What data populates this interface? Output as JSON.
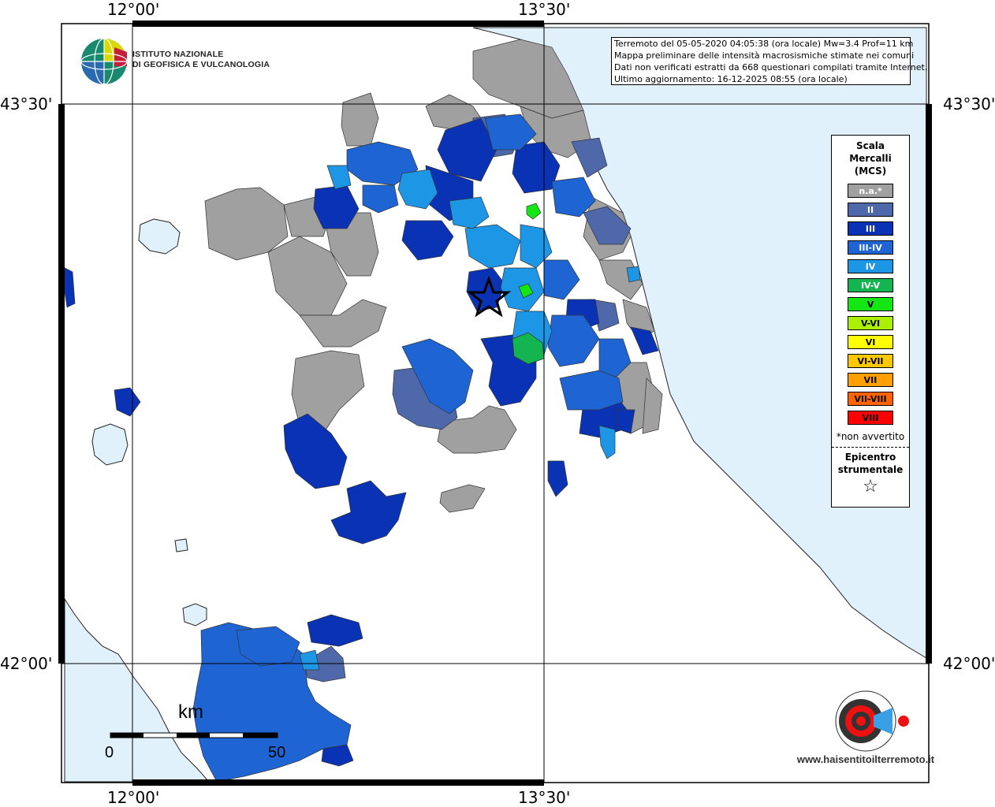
{
  "coords": {
    "lon_left": "12°00'",
    "lon_right": "13°30'",
    "lat_top": "43°30'",
    "lat_bottom": "42°00'"
  },
  "logo": {
    "line1": "ISTITUTO NAZIONALE",
    "line2": "DI GEOFISICA E VULCANOLOGIA"
  },
  "info": {
    "line1": "Terremoto del 05-05-2020 04:05:38 (ora locale) Mw=3.4 Prof=11 km",
    "line2": "Mappa preliminare delle intensità macrosismiche stimate nei comuni",
    "line3": "Dati non verificati estratti da 668 questionari compilati tramite Internet.",
    "line4": "Ultimo aggiornamento: 16-12-2025 08:55 (ora locale)"
  },
  "legend": {
    "title1": "Scala",
    "title2": "Mercalli",
    "title3": "(MCS)",
    "items": [
      {
        "label": "n.a.*",
        "color": "#a0a0a0",
        "text": "#ffffff"
      },
      {
        "label": "II",
        "color": "#4e68aa",
        "text": "#ffffff"
      },
      {
        "label": "III",
        "color": "#0a32b4",
        "text": "#ffffff"
      },
      {
        "label": "III-IV",
        "color": "#1e64d2",
        "text": "#ffffff"
      },
      {
        "label": "IV",
        "color": "#1e96e6",
        "text": "#ffffff"
      },
      {
        "label": "IV-V",
        "color": "#14b450",
        "text": "#ffffff"
      },
      {
        "label": "V",
        "color": "#14e614",
        "text": "#000000"
      },
      {
        "label": "V-VI",
        "color": "#aaf000",
        "text": "#000000"
      },
      {
        "label": "VI",
        "color": "#ffff00",
        "text": "#000000"
      },
      {
        "label": "VI-VII",
        "color": "#ffc800",
        "text": "#000000"
      },
      {
        "label": "VII",
        "color": "#ffa000",
        "text": "#000000"
      },
      {
        "label": "VII-VIII",
        "color": "#ff6400",
        "text": "#000000"
      },
      {
        "label": "VIII",
        "color": "#ff0000",
        "text": "#000000"
      }
    ],
    "note": "*non avvertito",
    "epicentre1": "Epicentro",
    "epicentre2": "strumentale",
    "star": "☆"
  },
  "scale": {
    "unit": "km",
    "min": "0",
    "max": "50"
  },
  "watermark": {
    "text": "www.haisentitoilterremoto.it"
  }
}
